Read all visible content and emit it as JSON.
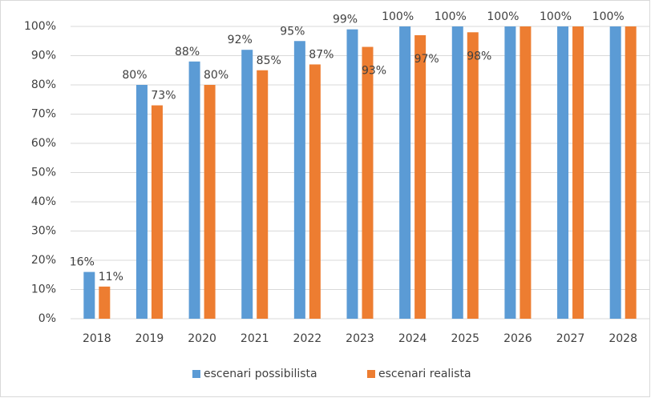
{
  "chart_data": {
    "type": "bar",
    "categories": [
      "2018",
      "2019",
      "2020",
      "2021",
      "2022",
      "2023",
      "2024",
      "2025",
      "2026",
      "2027",
      "2028"
    ],
    "series": [
      {
        "name": "escenari possibilista",
        "color": "#5b9bd5",
        "values": [
          16,
          80,
          88,
          92,
          95,
          99,
          100,
          100,
          100,
          100,
          100
        ],
        "value_labels": [
          "16%",
          "80%",
          "88%",
          "92%",
          "95%",
          "99%",
          "100%",
          "100%",
          "100%",
          "100%",
          "100%"
        ]
      },
      {
        "name": "escenari realista",
        "color": "#ed7d31",
        "values": [
          11,
          73,
          80,
          85,
          87,
          93,
          97,
          98,
          100,
          100,
          100
        ],
        "value_labels": [
          "11%",
          "73%",
          "80%",
          "85%",
          "87%",
          "93%",
          "97%",
          "98%",
          null,
          null,
          null
        ]
      }
    ],
    "ylim": [
      0,
      100
    ],
    "yticks": [
      {
        "value": 0,
        "label": "0%"
      },
      {
        "value": 10,
        "label": "10%"
      },
      {
        "value": 20,
        "label": "20%"
      },
      {
        "value": 30,
        "label": "30%"
      },
      {
        "value": 40,
        "label": "40%"
      },
      {
        "value": 50,
        "label": "50%"
      },
      {
        "value": 60,
        "label": "60%"
      },
      {
        "value": 70,
        "label": "70%"
      },
      {
        "value": 80,
        "label": "80%"
      },
      {
        "value": 90,
        "label": "90%"
      },
      {
        "value": 100,
        "label": "100%"
      }
    ],
    "grid": true,
    "legend": "bottom"
  }
}
